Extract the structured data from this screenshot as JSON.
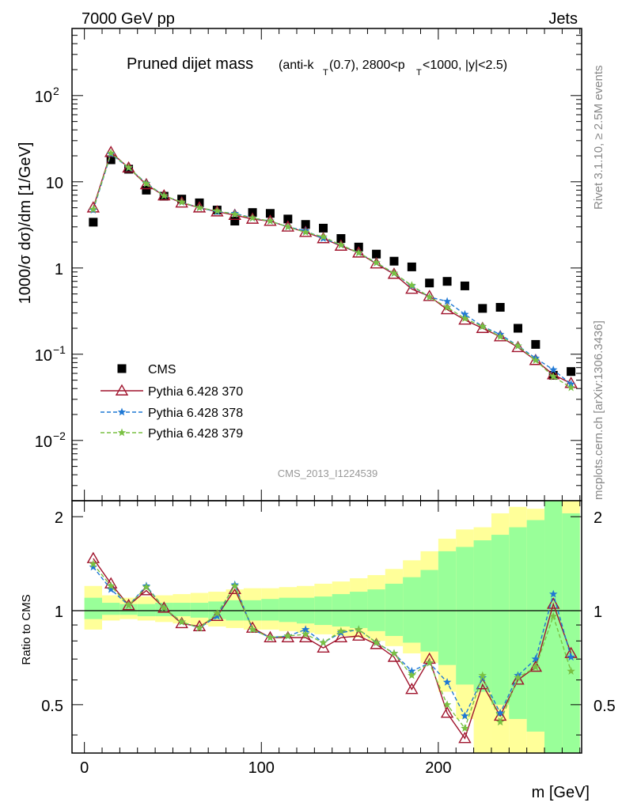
{
  "header": {
    "left": "7000 GeV pp",
    "right": "Jets",
    "title_main": "Pruned dijet mass",
    "title_sub": "(anti-k",
    "title_sub_T": "T",
    "title_sub_mid": "(0.7), 2800<p",
    "title_sub_T2": "T",
    "title_sub_end": "<1000, |y|<2.5)",
    "side_top": "Rivet 3.1.10, ≥ 2.5M events",
    "side_bottom": "mcplots.cern.ch [arXiv:1306.3436]",
    "analysis_id": "CMS_2013_I1224539"
  },
  "chart_data": [
    {
      "type": "scatter",
      "ylabel": "1000/σ dσ)/dm [1/GeV]",
      "yscale": "log",
      "ylim": [
        0.002,
        600
      ],
      "xlim": [
        -7,
        281
      ],
      "yticks": [
        {
          "value": 100,
          "label": "10",
          "exp": "2"
        },
        {
          "value": 10,
          "label": "10",
          "exp": ""
        },
        {
          "value": 1,
          "label": "1",
          "exp": ""
        },
        {
          "value": 0.1,
          "label": "10",
          "exp": "−1"
        },
        {
          "value": 0.01,
          "label": "10",
          "exp": "−2"
        }
      ],
      "x": [
        5,
        15,
        25,
        35,
        45,
        55,
        65,
        75,
        85,
        95,
        105,
        115,
        125,
        135,
        145,
        155,
        165,
        175,
        185,
        195,
        205,
        215,
        225,
        235,
        245,
        255,
        265,
        275
      ],
      "series": [
        {
          "name": "CMS",
          "color": "#000000",
          "marker": "square",
          "values": [
            3.4,
            18,
            14,
            8,
            6.8,
            6.3,
            5.7,
            4.7,
            3.5,
            4.4,
            4.3,
            3.7,
            3.2,
            2.9,
            2.2,
            1.75,
            1.45,
            1.2,
            1.03,
            0.67,
            0.7,
            0.62,
            0.34,
            0.35,
            0.2,
            0.13,
            0.057,
            0.063
          ]
        },
        {
          "name": "Pythia 6.428 370",
          "color": "#a0142d",
          "marker": "triangle",
          "dash": "",
          "values": [
            5.0,
            22,
            14.5,
            9.3,
            6.9,
            5.7,
            5.0,
            4.5,
            4.1,
            3.7,
            3.5,
            3.0,
            2.6,
            2.2,
            1.8,
            1.5,
            1.12,
            0.85,
            0.57,
            0.47,
            0.33,
            0.25,
            0.2,
            0.16,
            0.12,
            0.085,
            0.058,
            0.046
          ]
        },
        {
          "name": "Pythia 6.428 378",
          "color": "#1f78d4",
          "marker": "star",
          "dash": "5,3",
          "values": [
            4.7,
            21,
            14.5,
            9.6,
            6.9,
            5.8,
            5.0,
            4.5,
            4.3,
            3.8,
            3.5,
            3.0,
            2.7,
            2.2,
            1.85,
            1.5,
            1.15,
            0.87,
            0.62,
            0.46,
            0.41,
            0.29,
            0.21,
            0.17,
            0.125,
            0.09,
            0.066,
            0.045
          ]
        },
        {
          "name": "Pythia 6.428 379",
          "color": "#7ac143",
          "marker": "star",
          "dash": "5,3",
          "values": [
            4.8,
            21.5,
            14.6,
            9.5,
            6.9,
            5.8,
            5.0,
            4.6,
            4.2,
            3.8,
            3.5,
            3.0,
            2.6,
            2.3,
            1.85,
            1.5,
            1.15,
            0.87,
            0.63,
            0.46,
            0.35,
            0.26,
            0.21,
            0.16,
            0.125,
            0.085,
            0.055,
            0.041
          ]
        }
      ],
      "legend": "bottom-left"
    },
    {
      "type": "line",
      "ylabel": "Ratio to CMS",
      "xlabel": "m [GeV]",
      "ylim": [
        0.35,
        2.25
      ],
      "xlim": [
        -7,
        281
      ],
      "yticks": [
        0.5,
        1,
        2
      ],
      "xticks": [
        0,
        100,
        200
      ],
      "x": [
        5,
        15,
        25,
        35,
        45,
        55,
        65,
        75,
        85,
        95,
        105,
        115,
        125,
        135,
        145,
        155,
        165,
        175,
        185,
        195,
        205,
        215,
        225,
        235,
        245,
        255,
        265,
        275
      ],
      "band_outer": [
        [
          0.87,
          1.2
        ],
        [
          0.93,
          1.12
        ],
        [
          0.94,
          1.1
        ],
        [
          0.93,
          1.11
        ],
        [
          0.92,
          1.12
        ],
        [
          0.91,
          1.13
        ],
        [
          0.9,
          1.14
        ],
        [
          0.89,
          1.15
        ],
        [
          0.88,
          1.17
        ],
        [
          0.87,
          1.18
        ],
        [
          0.87,
          1.18
        ],
        [
          0.86,
          1.19
        ],
        [
          0.85,
          1.2
        ],
        [
          0.84,
          1.22
        ],
        [
          0.83,
          1.24
        ],
        [
          0.82,
          1.27
        ],
        [
          0.8,
          1.3
        ],
        [
          0.77,
          1.36
        ],
        [
          0.73,
          1.45
        ],
        [
          0.68,
          1.55
        ],
        [
          0.55,
          1.7
        ],
        [
          0.45,
          1.82
        ],
        [
          0.35,
          1.85
        ],
        [
          0.35,
          2.05
        ],
        [
          0.35,
          2.15
        ],
        [
          0.35,
          2.12
        ],
        [
          0.35,
          2.25
        ],
        [
          0.35,
          2.25
        ]
      ],
      "band_inner": [
        [
          0.94,
          1.1
        ],
        [
          0.97,
          1.06
        ],
        [
          0.97,
          1.05
        ],
        [
          0.96,
          1.05
        ],
        [
          0.96,
          1.06
        ],
        [
          0.96,
          1.06
        ],
        [
          0.95,
          1.06
        ],
        [
          0.94,
          1.07
        ],
        [
          0.93,
          1.08
        ],
        [
          0.93,
          1.08
        ],
        [
          0.93,
          1.09
        ],
        [
          0.92,
          1.1
        ],
        [
          0.91,
          1.1
        ],
        [
          0.9,
          1.11
        ],
        [
          0.89,
          1.13
        ],
        [
          0.88,
          1.15
        ],
        [
          0.86,
          1.17
        ],
        [
          0.83,
          1.22
        ],
        [
          0.79,
          1.28
        ],
        [
          0.74,
          1.35
        ],
        [
          0.67,
          1.55
        ],
        [
          0.58,
          1.6
        ],
        [
          0.55,
          1.68
        ],
        [
          0.5,
          1.75
        ],
        [
          0.45,
          1.85
        ],
        [
          0.41,
          1.95
        ],
        [
          0.35,
          2.25
        ],
        [
          0.35,
          2.05
        ]
      ],
      "series": [
        {
          "name": "Pythia 6.428 370",
          "color": "#a0142d",
          "marker": "triangle",
          "dash": "",
          "values": [
            1.47,
            1.22,
            1.04,
            1.16,
            1.02,
            0.91,
            0.89,
            0.96,
            1.17,
            0.88,
            0.82,
            0.82,
            0.82,
            0.76,
            0.82,
            0.83,
            0.78,
            0.71,
            0.56,
            0.7,
            0.47,
            0.39,
            0.58,
            0.46,
            0.6,
            0.66,
            1.05,
            0.73
          ]
        },
        {
          "name": "Pythia 6.428 378",
          "color": "#1f78d4",
          "marker": "star",
          "dash": "5,3",
          "values": [
            1.38,
            1.17,
            1.04,
            1.2,
            1.02,
            0.92,
            0.88,
            0.96,
            1.21,
            0.87,
            0.82,
            0.83,
            0.87,
            0.79,
            0.85,
            0.87,
            0.79,
            0.73,
            0.64,
            0.68,
            0.59,
            0.46,
            0.61,
            0.47,
            0.62,
            0.7,
            1.13,
            0.71
          ]
        },
        {
          "name": "Pythia 6.428 379",
          "color": "#7ac143",
          "marker": "star",
          "dash": "5,3",
          "values": [
            1.41,
            1.2,
            1.04,
            1.19,
            1.02,
            0.92,
            0.88,
            0.98,
            1.2,
            0.87,
            0.82,
            0.83,
            0.84,
            0.79,
            0.86,
            0.87,
            0.79,
            0.73,
            0.62,
            0.68,
            0.5,
            0.42,
            0.62,
            0.44,
            0.61,
            0.66,
            0.96,
            0.64
          ]
        }
      ]
    }
  ],
  "colors": {
    "band_outer": "#ffff99",
    "band_inner": "#99ff99"
  }
}
